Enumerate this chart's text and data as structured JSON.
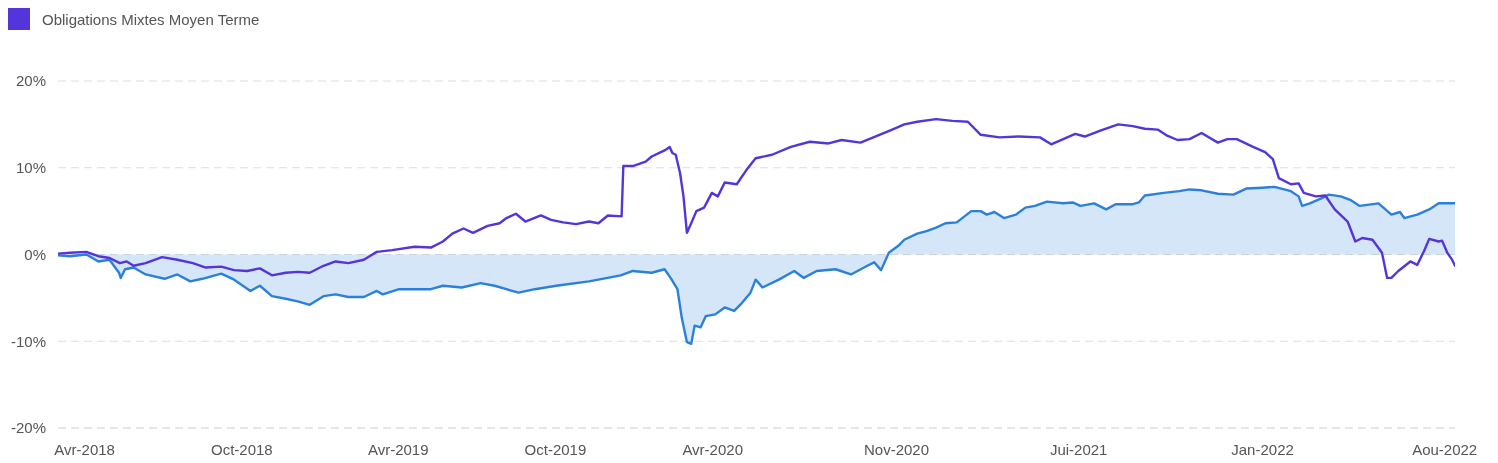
{
  "chart_data": {
    "type": "line",
    "legend": "top left",
    "grid": "y",
    "xlim": [
      "2018-03-01",
      "2022-08-13"
    ],
    "xticks": [
      {
        "value": "2018-04-01",
        "label": "Avr-2018"
      },
      {
        "value": "2018-10-01",
        "label": "Oct-2018"
      },
      {
        "value": "2019-04-01",
        "label": "Avr-2019"
      },
      {
        "value": "2019-10-01",
        "label": "Oct-2019"
      },
      {
        "value": "2020-04-01",
        "label": "Avr-2020"
      },
      {
        "value": "2020-11-01",
        "label": "Nov-2020"
      },
      {
        "value": "2021-06-01",
        "label": "Jui-2021"
      },
      {
        "value": "2022-01-01",
        "label": "Jan-2022"
      },
      {
        "value": "2022-08-01",
        "label": "Aou-2022"
      }
    ],
    "ylim": [
      -20,
      20
    ],
    "yticks": [
      {
        "value": -20,
        "label": "-20%"
      },
      {
        "value": -10,
        "label": "-10%"
      },
      {
        "value": 0,
        "label": "0%"
      },
      {
        "value": 10,
        "label": "10%"
      },
      {
        "value": 20,
        "label": "20%"
      }
    ],
    "series": [
      {
        "type": "area",
        "color": "#2b80dc",
        "x": [
          "2018-03-01",
          "2018-03-15",
          "2018-04-03",
          "2018-04-17",
          "2018-04-30",
          "2018-05-11",
          "2018-05-13",
          "2018-05-18",
          "2018-05-28",
          "2018-06-11",
          "2018-07-03",
          "2018-07-18",
          "2018-08-02",
          "2018-08-16",
          "2018-09-07",
          "2018-09-22",
          "2018-10-11",
          "2018-10-22",
          "2018-11-05",
          "2018-11-21",
          "2018-12-05",
          "2018-12-19",
          "2019-01-04",
          "2019-01-18",
          "2019-02-02",
          "2019-02-20",
          "2019-03-07",
          "2019-03-14",
          "2019-04-02",
          "2019-05-09",
          "2019-05-23",
          "2019-06-14",
          "2019-07-06",
          "2019-07-22",
          "2019-08-05",
          "2019-08-19",
          "2019-09-07",
          "2019-10-02",
          "2019-11-09",
          "2019-12-16",
          "2019-12-30",
          "2020-01-21",
          "2020-02-05",
          "2020-02-12",
          "2020-02-20",
          "2020-02-25",
          "2020-03-02",
          "2020-03-07",
          "2020-03-11",
          "2020-03-18",
          "2020-03-24",
          "2020-04-04",
          "2020-04-15",
          "2020-04-26",
          "2020-05-05",
          "2020-05-15",
          "2020-05-21",
          "2020-05-29",
          "2020-06-17",
          "2020-07-05",
          "2020-07-16",
          "2020-07-31",
          "2020-08-22",
          "2020-09-09",
          "2020-09-28",
          "2020-10-06",
          "2020-10-14",
          "2020-10-23",
          "2020-11-03",
          "2020-11-10",
          "2020-11-25",
          "2020-12-06",
          "2020-12-17",
          "2020-12-28",
          "2021-01-10",
          "2021-01-27",
          "2021-02-07",
          "2021-02-14",
          "2021-02-23",
          "2021-03-06",
          "2021-03-20",
          "2021-03-31",
          "2021-04-11",
          "2021-04-25",
          "2021-05-14",
          "2021-05-25",
          "2021-06-03",
          "2021-06-19",
          "2021-07-03",
          "2021-07-14",
          "2021-08-03",
          "2021-08-10",
          "2021-08-17",
          "2021-09-08",
          "2021-09-26",
          "2021-10-08",
          "2021-10-22",
          "2021-11-10",
          "2021-11-28",
          "2021-12-13",
          "2022-01-01",
          "2022-01-15",
          "2022-02-03",
          "2022-02-12",
          "2022-02-16",
          "2022-02-25",
          "2022-03-11",
          "2022-03-19",
          "2022-04-02",
          "2022-04-13",
          "2022-04-24",
          "2022-05-16",
          "2022-05-31",
          "2022-06-10",
          "2022-06-15",
          "2022-06-30",
          "2022-07-14",
          "2022-07-25",
          "2022-08-13"
        ],
        "values": [
          -0.1,
          -0.2,
          0,
          -0.8,
          -0.6,
          -2.1,
          -2.7,
          -1.7,
          -1.5,
          -2.3,
          -2.8,
          -2.3,
          -3.1,
          -2.8,
          -2.2,
          -2.9,
          -4.2,
          -3.6,
          -4.8,
          -5.1,
          -5.4,
          -5.8,
          -4.8,
          -4.6,
          -4.9,
          -4.9,
          -4.2,
          -4.6,
          -4.0,
          -4.0,
          -3.6,
          -3.8,
          -3.3,
          -3.6,
          -4.0,
          -4.4,
          -4.0,
          -3.6,
          -3.1,
          -2.4,
          -1.9,
          -2.1,
          -1.7,
          -2.7,
          -4.0,
          -7.3,
          -10.1,
          -10.3,
          -8.2,
          -8.4,
          -7.1,
          -6.9,
          -6.1,
          -6.5,
          -5.6,
          -4.4,
          -2.9,
          -3.8,
          -2.9,
          -1.9,
          -2.7,
          -1.9,
          -1.7,
          -2.3,
          -1.3,
          -0.9,
          -1.8,
          0.2,
          1.0,
          1.7,
          2.4,
          2.7,
          3.1,
          3.6,
          3.7,
          5.0,
          5.0,
          4.6,
          4.9,
          4.2,
          4.6,
          5.4,
          5.6,
          6.1,
          5.9,
          6.0,
          5.6,
          5.9,
          5.2,
          5.8,
          5.8,
          6.0,
          6.8,
          7.1,
          7.3,
          7.5,
          7.4,
          7.0,
          6.9,
          7.6,
          7.7,
          7.8,
          7.3,
          6.7,
          5.6,
          5.9,
          6.5,
          6.9,
          6.7,
          6.3,
          5.6,
          5.9,
          4.6,
          4.9,
          4.2,
          4.6,
          5.2,
          5.9,
          5.9
        ]
      },
      {
        "name": "Obligations Mixtes Moyen Terme",
        "color": "#5535da",
        "x": [
          "2018-03-01",
          "2018-03-15",
          "2018-04-03",
          "2018-04-17",
          "2018-04-30",
          "2018-05-12",
          "2018-05-20",
          "2018-05-28",
          "2018-06-11",
          "2018-06-30",
          "2018-07-18",
          "2018-08-05",
          "2018-08-20",
          "2018-09-07",
          "2018-09-22",
          "2018-10-07",
          "2018-10-22",
          "2018-11-05",
          "2018-11-21",
          "2018-12-05",
          "2018-12-19",
          "2019-01-04",
          "2019-01-18",
          "2019-02-02",
          "2019-02-20",
          "2019-03-07",
          "2019-03-25",
          "2019-04-20",
          "2019-05-09",
          "2019-05-23",
          "2019-06-03",
          "2019-06-16",
          "2019-06-27",
          "2019-07-14",
          "2019-07-28",
          "2019-08-05",
          "2019-08-16",
          "2019-08-27",
          "2019-09-14",
          "2019-09-26",
          "2019-10-10",
          "2019-10-25",
          "2019-11-09",
          "2019-11-20",
          "2019-12-01",
          "2019-12-17",
          "2019-12-19",
          "2019-12-30",
          "2020-01-14",
          "2020-01-21",
          "2020-02-05",
          "2020-02-11",
          "2020-02-14",
          "2020-02-18",
          "2020-02-23",
          "2020-02-27",
          "2020-03-02",
          "2020-03-07",
          "2020-03-13",
          "2020-03-22",
          "2020-03-31",
          "2020-04-07",
          "2020-04-15",
          "2020-04-29",
          "2020-05-10",
          "2020-05-21",
          "2020-06-09",
          "2020-07-01",
          "2020-07-23",
          "2020-08-14",
          "2020-08-29",
          "2020-09-20",
          "2020-10-05",
          "2020-10-27",
          "2020-11-10",
          "2020-11-25",
          "2020-12-17",
          "2021-01-05",
          "2021-01-23",
          "2021-02-07",
          "2021-03-01",
          "2021-03-23",
          "2021-04-17",
          "2021-04-30",
          "2021-05-14",
          "2021-05-28",
          "2021-06-08",
          "2021-06-27",
          "2021-07-17",
          "2021-08-03",
          "2021-08-17",
          "2021-09-01",
          "2021-09-12",
          "2021-09-24",
          "2021-10-08",
          "2021-10-22",
          "2021-11-10",
          "2021-11-21",
          "2021-12-02",
          "2021-12-21",
          "2022-01-04",
          "2022-01-13",
          "2022-01-20",
          "2022-02-03",
          "2022-02-12",
          "2022-02-18",
          "2022-03-04",
          "2022-03-15",
          "2022-03-26",
          "2022-04-10",
          "2022-04-19",
          "2022-04-27",
          "2022-05-09",
          "2022-05-20",
          "2022-05-26",
          "2022-05-31",
          "2022-06-08",
          "2022-06-22",
          "2022-06-30",
          "2022-07-08",
          "2022-07-14",
          "2022-07-25",
          "2022-07-29",
          "2022-08-04",
          "2022-08-09",
          "2022-08-13"
        ],
        "values": [
          0.1,
          0.2,
          0.3,
          -0.2,
          -0.4,
          -1.0,
          -0.8,
          -1.3,
          -1.0,
          -0.3,
          -0.6,
          -1.0,
          -1.5,
          -1.4,
          -1.8,
          -1.9,
          -1.6,
          -2.4,
          -2.1,
          -2.0,
          -2.1,
          -1.3,
          -0.8,
          -1.0,
          -0.6,
          0.3,
          0.5,
          0.9,
          0.8,
          1.5,
          2.4,
          3.0,
          2.5,
          3.3,
          3.6,
          4.2,
          4.7,
          3.8,
          4.5,
          4.0,
          3.7,
          3.5,
          3.8,
          3.6,
          4.5,
          4.4,
          10.2,
          10.2,
          10.7,
          11.3,
          12.0,
          12.4,
          11.7,
          11.5,
          9.4,
          6.7,
          2.5,
          3.6,
          5.0,
          5.4,
          7.1,
          6.7,
          8.3,
          8.1,
          9.7,
          11.1,
          11.5,
          12.4,
          13.0,
          12.8,
          13.2,
          12.9,
          13.5,
          14.4,
          15.0,
          15.3,
          15.6,
          15.4,
          15.3,
          13.8,
          13.5,
          13.6,
          13.5,
          12.7,
          13.3,
          13.9,
          13.6,
          14.3,
          15.0,
          14.8,
          14.5,
          14.4,
          13.7,
          13.2,
          13.3,
          14.0,
          12.9,
          13.3,
          13.3,
          12.4,
          11.8,
          11.0,
          8.8,
          8.1,
          8.2,
          7.1,
          6.7,
          6.8,
          5.2,
          3.8,
          1.5,
          1.9,
          1.7,
          0.2,
          -2.7,
          -2.7,
          -1.9,
          -0.8,
          -1.2,
          0.4,
          1.8,
          1.5,
          1.6,
          0.2,
          -0.5,
          -1.3
        ]
      }
    ]
  }
}
